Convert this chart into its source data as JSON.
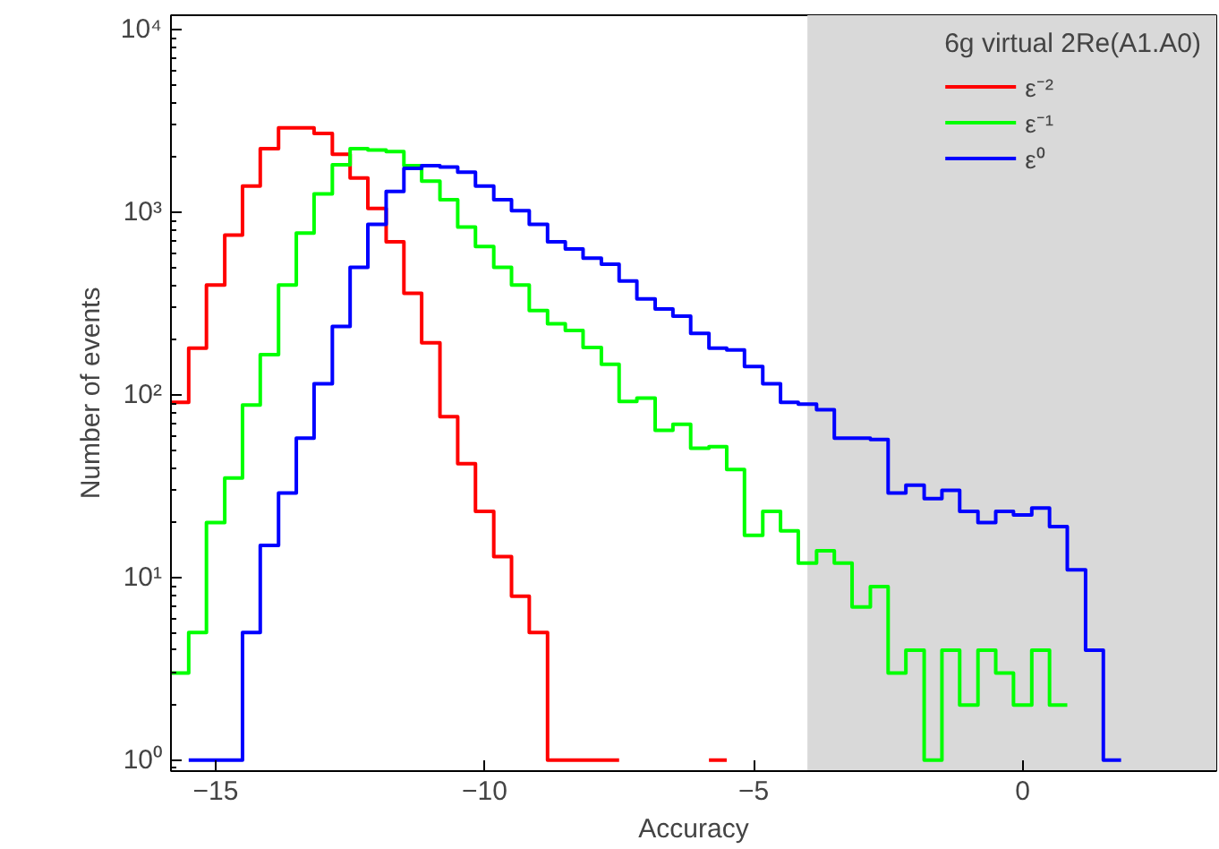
{
  "chart_data": {
    "type": "step",
    "xlabel": "Accuracy",
    "ylabel": "Number of events",
    "legend_title": "6g virtual 2Re(A1.A0)",
    "log": "y",
    "grid": false,
    "legend": "top right",
    "xlim": [
      -15.83,
      3.6
    ],
    "xticks": [
      -15,
      -10,
      -5,
      0
    ],
    "ylim": [
      0.87,
      12000
    ],
    "yticks": [
      {
        "value": 1,
        "label": "10⁰"
      },
      {
        "value": 10,
        "label": "10¹"
      },
      {
        "value": 100,
        "label": "10²"
      },
      {
        "value": 1000,
        "label": "10³"
      },
      {
        "value": 10000,
        "label": "10⁴"
      }
    ],
    "bands": [
      {
        "axis": "x",
        "from": -4,
        "to": 3.6,
        "color": "#d9d9d9"
      }
    ],
    "series": [
      {
        "name": "ε⁻²",
        "color": "#ff0000",
        "x": [
          -15.83,
          -15.5,
          -15.17,
          -14.83,
          -14.5,
          -14.17,
          -13.83,
          -13.5,
          -13.17,
          -12.83,
          -12.5,
          -12.17,
          -11.83,
          -11.5,
          -11.17,
          -10.83,
          -10.5,
          -10.17,
          -9.83,
          -9.5,
          -9.17,
          -8.83,
          -8.5,
          -8.17,
          -7.83,
          -7.5,
          -7.17,
          -5.83,
          -5.5
        ],
        "values": [
          91,
          180,
          400,
          750,
          1390,
          2230,
          2900,
          2900,
          2700,
          2080,
          1540,
          1050,
          690,
          360,
          193,
          76,
          42,
          23,
          13,
          7.9,
          5,
          1,
          1,
          1,
          1,
          1,
          null,
          1,
          1
        ]
      },
      {
        "name": "ε⁻¹",
        "color": "#00ff00",
        "x": [
          -15.83,
          -15.5,
          -15.17,
          -14.83,
          -14.5,
          -14.17,
          -13.83,
          -13.5,
          -13.17,
          -12.83,
          -12.5,
          -12.17,
          -11.83,
          -11.5,
          -11.17,
          -10.83,
          -10.5,
          -10.17,
          -9.83,
          -9.5,
          -9.17,
          -8.83,
          -8.5,
          -8.17,
          -7.83,
          -7.5,
          -7.17,
          -6.83,
          -6.5,
          -6.17,
          -5.83,
          -5.5,
          -5.17,
          -4.83,
          -4.5,
          -4.17,
          -3.83,
          -3.5,
          -3.17,
          -2.83,
          -2.5,
          -2.17,
          -1.83,
          -1.5,
          -1.17,
          -0.83,
          -0.5,
          -0.17,
          0.17,
          0.5,
          0.83
        ],
        "values": [
          3,
          5,
          20,
          35,
          88,
          166,
          400,
          770,
          1260,
          1820,
          2230,
          2190,
          2150,
          1800,
          1480,
          1170,
          830,
          650,
          500,
          400,
          290,
          245,
          225,
          182,
          147,
          92,
          96,
          64,
          69,
          51,
          52,
          39,
          17,
          23,
          18,
          12,
          14,
          12,
          6.9,
          8.9,
          3,
          4,
          1,
          4,
          2,
          4,
          3,
          2,
          4,
          2,
          2
        ]
      },
      {
        "name": "ε⁰",
        "color": "#0000ff",
        "x": [
          -15.5,
          -15.17,
          -14.83,
          -14.5,
          -14.17,
          -13.83,
          -13.5,
          -13.17,
          -12.83,
          -12.5,
          -12.17,
          -11.83,
          -11.5,
          -11.17,
          -10.83,
          -10.5,
          -10.17,
          -9.83,
          -9.5,
          -9.17,
          -8.83,
          -8.5,
          -8.17,
          -7.83,
          -7.5,
          -7.17,
          -6.83,
          -6.5,
          -6.17,
          -5.83,
          -5.5,
          -5.17,
          -4.83,
          -4.5,
          -4.17,
          -3.83,
          -3.5,
          -3.17,
          -2.83,
          -2.5,
          -2.17,
          -1.83,
          -1.5,
          -1.17,
          -0.83,
          -0.5,
          -0.17,
          0.17,
          0.5,
          0.83,
          1.17,
          1.5,
          1.83
        ],
        "values": [
          1,
          1,
          1,
          5,
          15,
          29,
          58,
          115,
          237,
          500,
          860,
          1300,
          1740,
          1800,
          1770,
          1660,
          1390,
          1170,
          1020,
          860,
          690,
          630,
          560,
          520,
          420,
          335,
          295,
          270,
          217,
          180,
          176,
          143,
          115,
          91,
          89,
          83,
          58,
          58,
          57,
          29,
          32,
          27,
          30,
          23,
          20,
          23,
          22,
          24,
          19,
          11,
          4,
          1,
          1
        ]
      }
    ]
  }
}
